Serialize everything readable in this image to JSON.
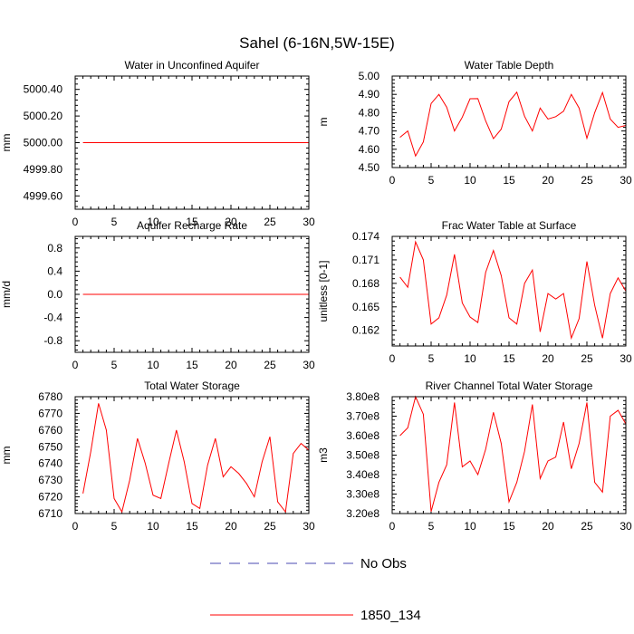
{
  "figure": {
    "title": "Sahel (6-16N,5W-15E)"
  },
  "legend": {
    "entries": [
      {
        "label": "No Obs",
        "color": "#4a4ab0",
        "style": "dashed"
      },
      {
        "label": "1850_134",
        "color": "#ff0000",
        "style": "solid"
      }
    ]
  },
  "chart_data": [
    {
      "type": "line",
      "title": "Water in Unconfined Aquifer",
      "xlabel": "",
      "ylabel": "mm",
      "xlim": [
        0,
        30
      ],
      "ylim": [
        4999.5,
        5000.5
      ],
      "xticks": [
        0,
        5,
        10,
        15,
        20,
        25,
        30
      ],
      "yticks": [
        4999.6,
        4999.8,
        5000.0,
        5000.2,
        5000.4
      ],
      "ytick_labels": [
        "4999.60",
        "4999.80",
        "5000.00",
        "5000.20",
        "5000.40"
      ],
      "x": [
        1,
        2,
        3,
        4,
        5,
        6,
        7,
        8,
        9,
        10,
        11,
        12,
        13,
        14,
        15,
        16,
        17,
        18,
        19,
        20,
        21,
        22,
        23,
        24,
        25,
        26,
        27,
        28,
        29,
        30
      ],
      "series": [
        {
          "name": "1850_134",
          "color": "#ff0000",
          "values": [
            5000,
            5000,
            5000,
            5000,
            5000,
            5000,
            5000,
            5000,
            5000,
            5000,
            5000,
            5000,
            5000,
            5000,
            5000,
            5000,
            5000,
            5000,
            5000,
            5000,
            5000,
            5000,
            5000,
            5000,
            5000,
            5000,
            5000,
            5000,
            5000,
            5000
          ]
        }
      ]
    },
    {
      "type": "line",
      "title": "Water Table Depth",
      "xlabel": "",
      "ylabel": "m",
      "xlim": [
        0,
        30
      ],
      "ylim": [
        4.5,
        5.0
      ],
      "xticks": [
        0,
        5,
        10,
        15,
        20,
        25,
        30
      ],
      "yticks": [
        4.5,
        4.6,
        4.7,
        4.8,
        4.9,
        5.0
      ],
      "ytick_labels": [
        "4.50",
        "4.60",
        "4.70",
        "4.80",
        "4.90",
        "5.00"
      ],
      "x": [
        1,
        2,
        3,
        4,
        5,
        6,
        7,
        8,
        9,
        10,
        11,
        12,
        13,
        14,
        15,
        16,
        17,
        18,
        19,
        20,
        21,
        22,
        23,
        24,
        25,
        26,
        27,
        28,
        29,
        30
      ],
      "series": [
        {
          "name": "1850_134",
          "color": "#ff0000",
          "values": [
            4.665,
            4.7,
            4.563,
            4.64,
            4.85,
            4.9,
            4.83,
            4.7,
            4.775,
            4.876,
            4.877,
            4.755,
            4.658,
            4.71,
            4.86,
            4.912,
            4.78,
            4.7,
            4.825,
            4.765,
            4.778,
            4.808,
            4.9,
            4.825,
            4.66,
            4.8,
            4.91,
            4.765,
            4.72,
            4.73
          ]
        }
      ]
    },
    {
      "type": "line",
      "title": "Aquifer Recharge Rate",
      "xlabel": "",
      "ylabel": "mm/d",
      "xlim": [
        0,
        30
      ],
      "ylim": [
        -1.0,
        1.0
      ],
      "xticks": [
        0,
        5,
        10,
        15,
        20,
        25,
        30
      ],
      "yticks": [
        -0.8,
        -0.4,
        0.0,
        0.4,
        0.8
      ],
      "ytick_labels": [
        "-0.8",
        "-0.4",
        "0.0",
        "0.4",
        "0.8"
      ],
      "x": [
        1,
        2,
        3,
        4,
        5,
        6,
        7,
        8,
        9,
        10,
        11,
        12,
        13,
        14,
        15,
        16,
        17,
        18,
        19,
        20,
        21,
        22,
        23,
        24,
        25,
        26,
        27,
        28,
        29,
        30
      ],
      "series": [
        {
          "name": "1850_134",
          "color": "#ff0000",
          "values": [
            0,
            0,
            0,
            0,
            0,
            0,
            0,
            0,
            0,
            0,
            0,
            0,
            0,
            0,
            0,
            0,
            0,
            0,
            0,
            0,
            0,
            0,
            0,
            0,
            0,
            0,
            0,
            0,
            0,
            0
          ]
        }
      ]
    },
    {
      "type": "line",
      "title": "Frac Water Table at Surface",
      "xlabel": "",
      "ylabel": "unitless [0-1]",
      "xlim": [
        0,
        30
      ],
      "ylim": [
        0.16,
        0.174
      ],
      "xticks": [
        0,
        5,
        10,
        15,
        20,
        25,
        30
      ],
      "yticks": [
        0.162,
        0.165,
        0.168,
        0.171,
        0.174
      ],
      "ytick_labels": [
        "0.162",
        "0.165",
        "0.168",
        "0.171",
        "0.174"
      ],
      "x": [
        1,
        2,
        3,
        4,
        5,
        6,
        7,
        8,
        9,
        10,
        11,
        12,
        13,
        14,
        15,
        16,
        17,
        18,
        19,
        20,
        21,
        22,
        23,
        24,
        25,
        26,
        27,
        28,
        29,
        30
      ],
      "series": [
        {
          "name": "1850_134",
          "color": "#ff0000",
          "values": [
            0.1688,
            0.1675,
            0.1733,
            0.171,
            0.1628,
            0.1636,
            0.1665,
            0.1717,
            0.1655,
            0.1637,
            0.163,
            0.1694,
            0.1722,
            0.169,
            0.1636,
            0.1628,
            0.168,
            0.1697,
            0.1618,
            0.1667,
            0.166,
            0.1667,
            0.161,
            0.1635,
            0.1708,
            0.1652,
            0.161,
            0.1667,
            0.1687,
            0.167
          ]
        }
      ]
    },
    {
      "type": "line",
      "title": "Total Water Storage",
      "xlabel": "",
      "ylabel": "mm",
      "xlim": [
        0,
        30
      ],
      "ylim": [
        6710,
        6780
      ],
      "xticks": [
        0,
        5,
        10,
        15,
        20,
        25,
        30
      ],
      "yticks": [
        6710,
        6720,
        6730,
        6740,
        6750,
        6760,
        6770,
        6780
      ],
      "ytick_labels": [
        "6710",
        "6720",
        "6730",
        "6740",
        "6750",
        "6760",
        "6770",
        "6780"
      ],
      "x": [
        1,
        2,
        3,
        4,
        5,
        6,
        7,
        8,
        9,
        10,
        11,
        12,
        13,
        14,
        15,
        16,
        17,
        18,
        19,
        20,
        21,
        22,
        23,
        24,
        25,
        26,
        27,
        28,
        29,
        30
      ],
      "series": [
        {
          "name": "1850_134",
          "color": "#ff0000",
          "values": [
            6722,
            6747,
            6776,
            6760,
            6719,
            6711,
            6730,
            6755,
            6740,
            6721,
            6719,
            6740,
            6760,
            6741,
            6716,
            6713,
            6739,
            6755,
            6732,
            6738,
            6734,
            6728,
            6720,
            6741,
            6756,
            6717,
            6711,
            6746,
            6752,
            6748
          ]
        }
      ]
    },
    {
      "type": "line",
      "title": "River Channel Total Water Storage",
      "xlabel": "",
      "ylabel": "m3",
      "xlim": [
        0,
        30
      ],
      "ylim": [
        320000000.0,
        380000000.0
      ],
      "xticks": [
        0,
        5,
        10,
        15,
        20,
        25,
        30
      ],
      "yticks": [
        320000000.0,
        330000000.0,
        340000000.0,
        350000000.0,
        360000000.0,
        370000000.0,
        380000000.0
      ],
      "ytick_labels": [
        "3.20e8",
        "3.30e8",
        "3.40e8",
        "3.50e8",
        "3.60e8",
        "3.70e8",
        "3.80e8"
      ],
      "x": [
        1,
        2,
        3,
        4,
        5,
        6,
        7,
        8,
        9,
        10,
        11,
        12,
        13,
        14,
        15,
        16,
        17,
        18,
        19,
        20,
        21,
        22,
        23,
        24,
        25,
        26,
        27,
        28,
        29,
        30
      ],
      "series": [
        {
          "name": "1850_134",
          "color": "#ff0000",
          "values": [
            360000000.0,
            364000000.0,
            380000000.0,
            371000000.0,
            321000000.0,
            336000000.0,
            345000000.0,
            377000000.0,
            344000000.0,
            347000000.0,
            340000000.0,
            353000000.0,
            372000000.0,
            356000000.0,
            326000000.0,
            336000000.0,
            352000000.0,
            376000000.0,
            338000000.0,
            347000000.0,
            349000000.0,
            367000000.0,
            343000000.0,
            356000000.0,
            377000000.0,
            336000000.0,
            331000000.0,
            370000000.0,
            373000000.0,
            366000000.0
          ]
        }
      ]
    }
  ]
}
